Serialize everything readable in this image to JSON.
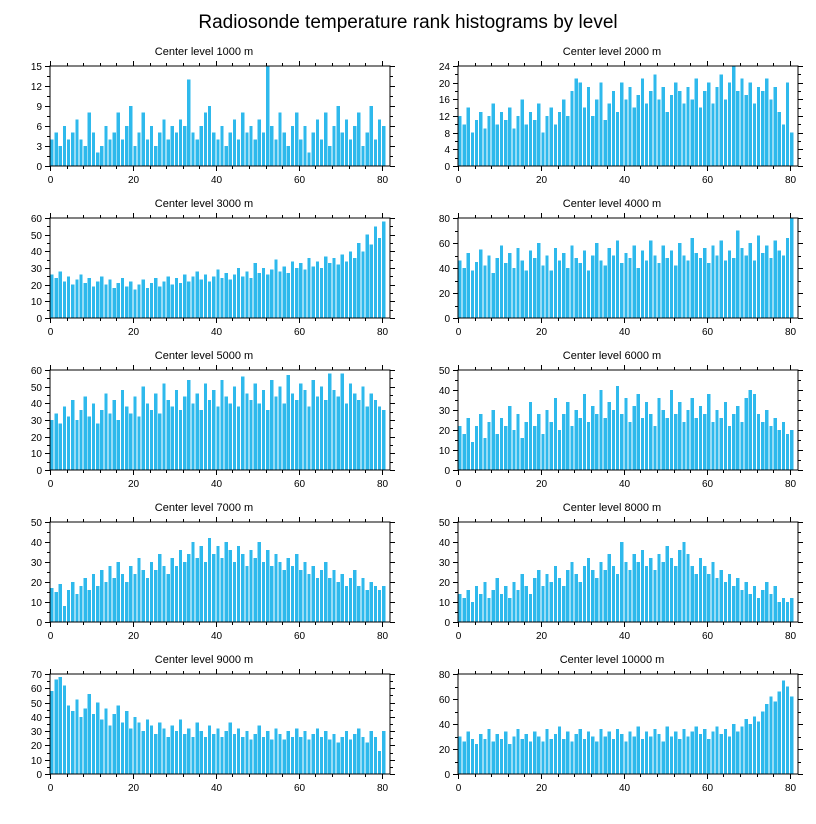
{
  "page_title": "Radiosonde temperature rank histograms by level",
  "colors": {
    "bar": "#2EB9EC",
    "axis": "#000000"
  },
  "chart_data": [
    {
      "type": "bar",
      "title": "Center level 1000 m",
      "xlabel": "",
      "ylabel": "",
      "xlim": [
        0,
        82
      ],
      "ylim": [
        0,
        15
      ],
      "x_ticks": [
        0,
        20,
        40,
        60,
        80
      ],
      "y_ticks": [
        0,
        3,
        6,
        9,
        12,
        15
      ],
      "values": [
        4,
        5,
        3,
        6,
        4,
        5,
        7,
        4,
        3,
        8,
        5,
        2,
        3,
        6,
        4,
        5,
        8,
        4,
        6,
        9,
        3,
        5,
        8,
        4,
        6,
        3,
        5,
        7,
        4,
        6,
        5,
        7,
        6,
        13,
        5,
        4,
        6,
        8,
        9,
        5,
        4,
        6,
        3,
        5,
        7,
        4,
        8,
        5,
        6,
        4,
        7,
        5,
        15,
        6,
        4,
        8,
        5,
        3,
        6,
        8,
        4,
        6,
        2,
        5,
        7,
        4,
        8,
        3,
        6,
        9,
        5,
        7,
        4,
        6,
        8,
        3,
        5,
        9,
        4,
        7,
        6
      ]
    },
    {
      "type": "bar",
      "title": "Center level 2000 m",
      "xlabel": "",
      "ylabel": "",
      "xlim": [
        0,
        82
      ],
      "ylim": [
        0,
        24
      ],
      "x_ticks": [
        0,
        20,
        40,
        60,
        80
      ],
      "y_ticks": [
        0,
        4,
        8,
        12,
        16,
        20,
        24
      ],
      "values": [
        12,
        10,
        14,
        8,
        11,
        13,
        9,
        12,
        15,
        10,
        13,
        11,
        14,
        9,
        12,
        16,
        10,
        13,
        11,
        15,
        8,
        12,
        14,
        10,
        13,
        16,
        12,
        18,
        21,
        20,
        14,
        19,
        12,
        16,
        20,
        11,
        15,
        18,
        13,
        20,
        16,
        19,
        14,
        17,
        21,
        15,
        18,
        22,
        16,
        19,
        13,
        17,
        20,
        18,
        15,
        19,
        16,
        21,
        14,
        18,
        20,
        15,
        19,
        22,
        16,
        20,
        24,
        18,
        21,
        17,
        20,
        15,
        19,
        18,
        21,
        16,
        19,
        13,
        10,
        20,
        8
      ]
    },
    {
      "type": "bar",
      "title": "Center level 3000 m",
      "xlabel": "",
      "ylabel": "",
      "xlim": [
        0,
        82
      ],
      "ylim": [
        0,
        60
      ],
      "x_ticks": [
        0,
        20,
        40,
        60,
        80
      ],
      "y_ticks": [
        0,
        10,
        20,
        30,
        40,
        50,
        60
      ],
      "values": [
        26,
        24,
        28,
        22,
        25,
        20,
        23,
        26,
        21,
        24,
        19,
        22,
        25,
        20,
        23,
        18,
        21,
        24,
        19,
        22,
        17,
        20,
        23,
        18,
        21,
        24,
        19,
        22,
        25,
        20,
        24,
        21,
        26,
        22,
        25,
        28,
        23,
        26,
        22,
        25,
        29,
        24,
        27,
        23,
        26,
        30,
        25,
        28,
        24,
        33,
        27,
        30,
        26,
        29,
        35,
        28,
        31,
        27,
        34,
        30,
        33,
        29,
        36,
        31,
        34,
        30,
        37,
        33,
        36,
        32,
        38,
        34,
        40,
        36,
        45,
        40,
        50,
        44,
        55,
        48,
        58
      ]
    },
    {
      "type": "bar",
      "title": "Center level 4000 m",
      "xlabel": "",
      "ylabel": "",
      "xlim": [
        0,
        82
      ],
      "ylim": [
        0,
        80
      ],
      "x_ticks": [
        0,
        20,
        40,
        60,
        80
      ],
      "y_ticks": [
        0,
        20,
        40,
        60,
        80
      ],
      "values": [
        46,
        40,
        52,
        38,
        45,
        55,
        42,
        50,
        36,
        48,
        58,
        44,
        52,
        40,
        56,
        46,
        38,
        54,
        48,
        60,
        42,
        50,
        38,
        56,
        46,
        52,
        40,
        58,
        48,
        44,
        54,
        38,
        50,
        60,
        46,
        42,
        56,
        50,
        62,
        44,
        52,
        48,
        58,
        40,
        54,
        46,
        62,
        50,
        44,
        58,
        48,
        54,
        42,
        60,
        50,
        46,
        64,
        52,
        48,
        56,
        44,
        58,
        50,
        62,
        46,
        54,
        48,
        70,
        56,
        50,
        60,
        46,
        66,
        52,
        58,
        48,
        62,
        54,
        50,
        64,
        80
      ]
    },
    {
      "type": "bar",
      "title": "Center level 5000 m",
      "xlabel": "",
      "ylabel": "",
      "xlim": [
        0,
        82
      ],
      "ylim": [
        0,
        60
      ],
      "x_ticks": [
        0,
        20,
        40,
        60,
        80
      ],
      "y_ticks": [
        0,
        10,
        20,
        30,
        40,
        50,
        60
      ],
      "values": [
        30,
        34,
        28,
        38,
        32,
        42,
        30,
        36,
        44,
        32,
        40,
        28,
        36,
        46,
        34,
        42,
        30,
        48,
        38,
        34,
        44,
        32,
        50,
        40,
        36,
        46,
        34,
        52,
        42,
        38,
        48,
        36,
        44,
        54,
        40,
        46,
        36,
        52,
        42,
        48,
        38,
        54,
        44,
        40,
        50,
        38,
        56,
        46,
        42,
        52,
        40,
        48,
        36,
        54,
        44,
        50,
        40,
        57,
        46,
        42,
        52,
        48,
        38,
        54,
        44,
        50,
        42,
        58,
        48,
        44,
        58,
        40,
        52,
        46,
        42,
        50,
        38,
        46,
        42,
        38,
        36
      ]
    },
    {
      "type": "bar",
      "title": "Center level 6000 m",
      "xlabel": "",
      "ylabel": "",
      "xlim": [
        0,
        82
      ],
      "ylim": [
        0,
        50
      ],
      "x_ticks": [
        0,
        20,
        40,
        60,
        80
      ],
      "y_ticks": [
        0,
        10,
        20,
        30,
        40,
        50
      ],
      "values": [
        22,
        18,
        26,
        14,
        22,
        28,
        16,
        24,
        30,
        18,
        26,
        22,
        32,
        20,
        28,
        16,
        24,
        34,
        22,
        28,
        18,
        30,
        24,
        36,
        20,
        28,
        34,
        22,
        30,
        26,
        38,
        24,
        32,
        28,
        40,
        26,
        34,
        30,
        42,
        28,
        36,
        24,
        32,
        38,
        26,
        34,
        28,
        22,
        36,
        30,
        26,
        40,
        28,
        34,
        24,
        30,
        36,
        26,
        32,
        28,
        38,
        24,
        30,
        26,
        34,
        22,
        28,
        32,
        24,
        36,
        40,
        38,
        28,
        24,
        30,
        22,
        26,
        20,
        24,
        18,
        20
      ]
    },
    {
      "type": "bar",
      "title": "Center level 7000 m",
      "xlabel": "",
      "ylabel": "",
      "xlim": [
        0,
        82
      ],
      "ylim": [
        0,
        50
      ],
      "x_ticks": [
        0,
        20,
        40,
        60,
        80
      ],
      "y_ticks": [
        0,
        10,
        20,
        30,
        40,
        50
      ],
      "values": [
        17,
        15,
        19,
        8,
        16,
        20,
        14,
        18,
        22,
        16,
        24,
        18,
        26,
        20,
        28,
        22,
        30,
        24,
        20,
        28,
        24,
        32,
        26,
        22,
        30,
        26,
        34,
        28,
        24,
        32,
        28,
        36,
        30,
        34,
        40,
        32,
        38,
        30,
        42,
        34,
        38,
        32,
        40,
        36,
        30,
        38,
        34,
        28,
        36,
        32,
        40,
        30,
        36,
        28,
        34,
        30,
        26,
        32,
        28,
        34,
        26,
        30,
        24,
        28,
        22,
        26,
        30,
        22,
        26,
        20,
        24,
        18,
        22,
        26,
        18,
        22,
        16,
        20,
        18,
        16,
        18
      ]
    },
    {
      "type": "bar",
      "title": "Center level 8000 m",
      "xlabel": "",
      "ylabel": "",
      "xlim": [
        0,
        82
      ],
      "ylim": [
        0,
        50
      ],
      "x_ticks": [
        0,
        20,
        40,
        60,
        80
      ],
      "y_ticks": [
        0,
        10,
        20,
        30,
        40,
        50
      ],
      "values": [
        14,
        12,
        16,
        10,
        18,
        14,
        20,
        12,
        16,
        22,
        14,
        18,
        12,
        20,
        16,
        24,
        18,
        14,
        22,
        26,
        18,
        24,
        20,
        28,
        22,
        18,
        26,
        30,
        24,
        20,
        28,
        32,
        26,
        22,
        30,
        26,
        34,
        28,
        24,
        40,
        30,
        26,
        34,
        30,
        36,
        28,
        32,
        26,
        34,
        30,
        38,
        32,
        28,
        36,
        40,
        34,
        28,
        24,
        32,
        28,
        24,
        30,
        22,
        26,
        20,
        24,
        18,
        22,
        16,
        20,
        14,
        18,
        12,
        16,
        20,
        14,
        18,
        10,
        12,
        10,
        12
      ]
    },
    {
      "type": "bar",
      "title": "Center level 9000 m",
      "xlabel": "",
      "ylabel": "",
      "xlim": [
        0,
        82
      ],
      "ylim": [
        0,
        70
      ],
      "x_ticks": [
        0,
        20,
        40,
        60,
        80
      ],
      "y_ticks": [
        0,
        10,
        20,
        30,
        40,
        50,
        60,
        70
      ],
      "values": [
        58,
        66,
        68,
        62,
        48,
        44,
        52,
        40,
        46,
        56,
        42,
        50,
        38,
        46,
        34,
        42,
        48,
        36,
        44,
        32,
        40,
        36,
        30,
        38,
        34,
        28,
        36,
        32,
        26,
        34,
        30,
        38,
        28,
        32,
        26,
        36,
        30,
        26,
        34,
        28,
        32,
        26,
        30,
        36,
        28,
        32,
        26,
        30,
        24,
        28,
        34,
        26,
        30,
        24,
        32,
        28,
        24,
        30,
        26,
        32,
        26,
        30,
        24,
        28,
        32,
        26,
        30,
        24,
        28,
        22,
        26,
        30,
        24,
        28,
        32,
        26,
        22,
        30,
        26,
        16,
        30
      ]
    },
    {
      "type": "bar",
      "title": "Center level 10000 m",
      "xlabel": "",
      "ylabel": "",
      "xlim": [
        0,
        82
      ],
      "ylim": [
        0,
        80
      ],
      "x_ticks": [
        0,
        20,
        40,
        60,
        80
      ],
      "y_ticks": [
        0,
        20,
        40,
        60,
        80
      ],
      "values": [
        30,
        26,
        34,
        28,
        24,
        32,
        28,
        36,
        26,
        32,
        28,
        34,
        24,
        30,
        36,
        28,
        32,
        26,
        34,
        30,
        26,
        36,
        28,
        32,
        38,
        28,
        34,
        26,
        32,
        36,
        28,
        34,
        30,
        26,
        36,
        30,
        34,
        28,
        36,
        32,
        26,
        34,
        30,
        38,
        28,
        34,
        30,
        36,
        32,
        26,
        38,
        30,
        34,
        28,
        36,
        30,
        34,
        38,
        32,
        36,
        28,
        34,
        38,
        32,
        36,
        30,
        40,
        34,
        38,
        44,
        40,
        46,
        42,
        50,
        56,
        62,
        58,
        66,
        75,
        70,
        62
      ]
    }
  ]
}
